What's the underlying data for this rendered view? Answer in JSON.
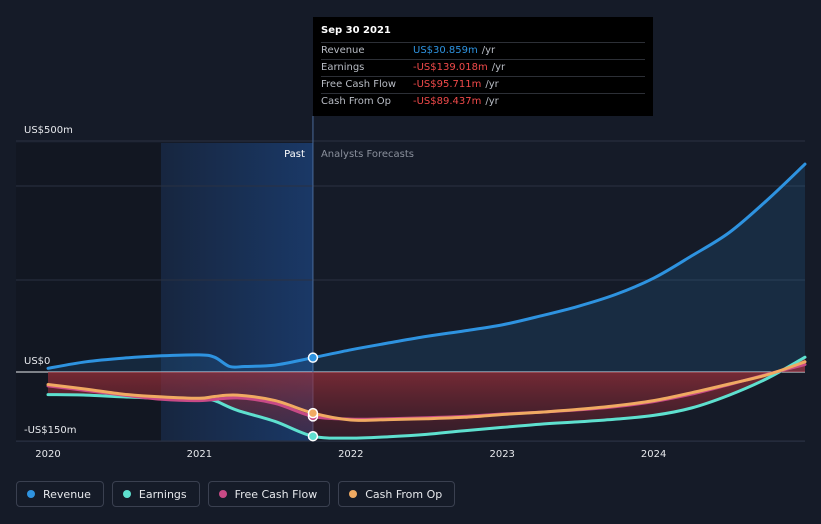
{
  "chart_data": {
    "type": "line",
    "title": "",
    "xlabel": "",
    "ylabel": "",
    "y_tick_labels": [
      "US$500m",
      "US$0",
      "-US$150m"
    ],
    "x_tick_labels": [
      "2020",
      "2021",
      "2022",
      "2023",
      "2024"
    ],
    "ylim": [
      -150,
      500
    ],
    "xlim": [
      2020.0,
      2025.0
    ],
    "past_label": "Past",
    "forecast_label": "Analysts Forecasts",
    "divider_x": 2021.75,
    "series": [
      {
        "name": "Revenue",
        "color": "#2e93e0",
        "x": [
          2020.0,
          2020.25,
          2020.5,
          2020.75,
          2021.0,
          2021.1,
          2021.2,
          2021.3,
          2021.5,
          2021.75,
          2022.0,
          2022.25,
          2022.5,
          2022.75,
          2023.0,
          2023.25,
          2023.5,
          2023.75,
          2024.0,
          2024.25,
          2024.5,
          2024.75,
          2025.0
        ],
        "values": [
          8,
          22,
          30,
          35,
          37,
          32,
          12,
          12,
          15,
          31,
          48,
          63,
          77,
          89,
          102,
          121,
          142,
          168,
          203,
          251,
          302,
          372,
          450
        ]
      },
      {
        "name": "Earnings",
        "color": "#5ee0cf",
        "x": [
          2020.0,
          2020.25,
          2020.5,
          2020.75,
          2021.0,
          2021.1,
          2021.25,
          2021.5,
          2021.75,
          2022.0,
          2022.25,
          2022.5,
          2022.75,
          2023.0,
          2023.25,
          2023.5,
          2023.75,
          2024.0,
          2024.25,
          2024.5,
          2024.75,
          2025.0
        ],
        "values": [
          -49,
          -50,
          -54,
          -57,
          -58,
          -62,
          -83,
          -107,
          -139,
          -143,
          -140,
          -135,
          -127,
          -120,
          -113,
          -108,
          -102,
          -94,
          -78,
          -50,
          -14,
          32
        ]
      },
      {
        "name": "Free Cash Flow",
        "color": "#c84a86",
        "x": [
          2020.0,
          2020.25,
          2020.5,
          2020.75,
          2021.0,
          2021.25,
          2021.5,
          2021.75,
          2022.0,
          2022.25,
          2022.5,
          2022.75,
          2023.0,
          2023.25,
          2023.5,
          2023.75,
          2024.0,
          2024.25,
          2024.5,
          2024.75,
          2025.0
        ],
        "values": [
          -30,
          -40,
          -50,
          -59,
          -62,
          -56,
          -68,
          -96,
          -102,
          -101,
          -99,
          -96,
          -91,
          -87,
          -82,
          -75,
          -64,
          -48,
          -27,
          -5,
          16
        ]
      },
      {
        "name": "Cash From Op",
        "color": "#f0aa62",
        "x": [
          2020.0,
          2020.25,
          2020.5,
          2020.75,
          2021.0,
          2021.1,
          2021.25,
          2021.5,
          2021.75,
          2022.0,
          2022.25,
          2022.5,
          2022.75,
          2023.0,
          2023.25,
          2023.5,
          2023.75,
          2024.0,
          2024.25,
          2024.5,
          2024.75,
          2025.0
        ],
        "values": [
          -27,
          -37,
          -48,
          -54,
          -57,
          -53,
          -50,
          -62,
          -89,
          -104,
          -103,
          -101,
          -98,
          -92,
          -87,
          -81,
          -73,
          -62,
          -45,
          -26,
          -6,
          22
        ]
      }
    ]
  },
  "tooltip": {
    "date": "Sep 30 2021",
    "rows": [
      {
        "name": "Revenue",
        "value": "US$30.859m",
        "unit": "/yr",
        "color": "#2e93e0"
      },
      {
        "name": "Earnings",
        "value": "-US$139.018m",
        "unit": "/yr",
        "color": "#f04a4a"
      },
      {
        "name": "Free Cash Flow",
        "value": "-US$95.711m",
        "unit": "/yr",
        "color": "#f04a4a"
      },
      {
        "name": "Cash From Op",
        "value": "-US$89.437m",
        "unit": "/yr",
        "color": "#f04a4a"
      }
    ]
  },
  "legend": [
    {
      "label": "Revenue",
      "color": "#2e93e0"
    },
    {
      "label": "Earnings",
      "color": "#5ee0cf"
    },
    {
      "label": "Free Cash Flow",
      "color": "#c84a86"
    },
    {
      "label": "Cash From Op",
      "color": "#f0aa62"
    }
  ]
}
